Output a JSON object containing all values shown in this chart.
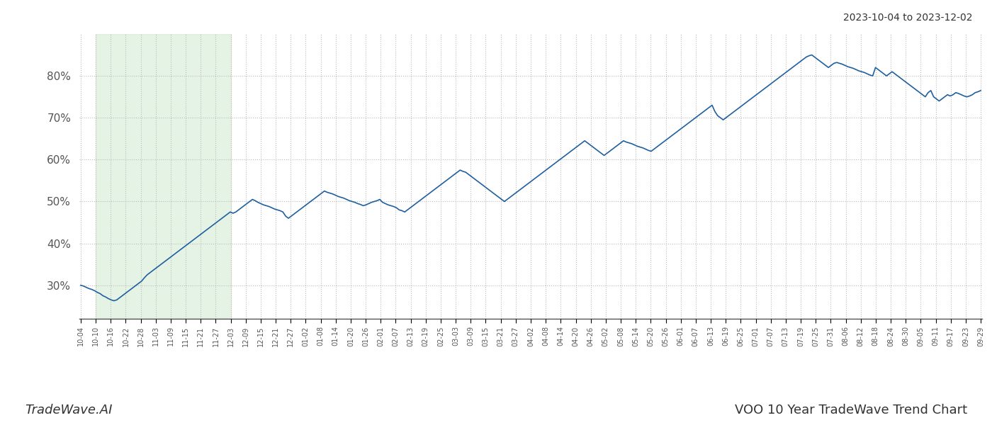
{
  "title_top_right": "2023-10-04 to 2023-12-02",
  "title_bottom_right": "VOO 10 Year TradeWave Trend Chart",
  "title_bottom_left": "TradeWave.AI",
  "line_color": "#2060a0",
  "line_width": 1.2,
  "shaded_region_color": "#cde8cd",
  "shaded_region_alpha": 0.5,
  "background_color": "#ffffff",
  "grid_color": "#bbbbbb",
  "grid_style": ":",
  "ylim": [
    22,
    90
  ],
  "yticks": [
    30,
    40,
    50,
    60,
    70,
    80
  ],
  "x_labels": [
    "10-04",
    "10-10",
    "10-16",
    "10-22",
    "10-28",
    "11-03",
    "11-09",
    "11-15",
    "11-21",
    "11-27",
    "12-03",
    "12-09",
    "12-15",
    "12-21",
    "12-27",
    "01-02",
    "01-08",
    "01-14",
    "01-20",
    "01-26",
    "02-01",
    "02-07",
    "02-13",
    "02-19",
    "02-25",
    "03-03",
    "03-09",
    "03-15",
    "03-21",
    "03-27",
    "04-02",
    "04-08",
    "04-14",
    "04-20",
    "04-26",
    "05-02",
    "05-08",
    "05-14",
    "05-20",
    "05-26",
    "06-01",
    "06-07",
    "06-13",
    "06-19",
    "06-25",
    "07-01",
    "07-07",
    "07-13",
    "07-19",
    "07-25",
    "07-31",
    "08-06",
    "08-12",
    "08-18",
    "08-24",
    "08-30",
    "09-05",
    "09-11",
    "09-17",
    "09-23",
    "09-29"
  ],
  "shaded_label_start": "10-10",
  "shaded_label_end": "12-03",
  "values": [
    30.0,
    29.8,
    29.5,
    29.2,
    29.0,
    28.7,
    28.3,
    28.0,
    27.5,
    27.2,
    26.8,
    26.5,
    26.3,
    26.5,
    27.0,
    27.5,
    28.0,
    28.5,
    29.0,
    29.5,
    30.0,
    30.5,
    31.0,
    31.8,
    32.5,
    33.0,
    33.5,
    34.0,
    34.5,
    35.0,
    35.5,
    36.0,
    36.5,
    37.0,
    37.5,
    38.0,
    38.5,
    39.0,
    39.5,
    40.0,
    40.5,
    41.0,
    41.5,
    42.0,
    42.5,
    43.0,
    43.5,
    44.0,
    44.5,
    45.0,
    45.5,
    46.0,
    46.5,
    47.0,
    47.5,
    47.2,
    47.5,
    48.0,
    48.5,
    49.0,
    49.5,
    50.0,
    50.5,
    50.2,
    49.8,
    49.5,
    49.2,
    49.0,
    48.8,
    48.5,
    48.2,
    48.0,
    47.8,
    47.5,
    46.5,
    46.0,
    46.5,
    47.0,
    47.5,
    48.0,
    48.5,
    49.0,
    49.5,
    50.0,
    50.5,
    51.0,
    51.5,
    52.0,
    52.5,
    52.2,
    52.0,
    51.8,
    51.5,
    51.2,
    51.0,
    50.8,
    50.5,
    50.2,
    50.0,
    49.8,
    49.5,
    49.3,
    49.0,
    49.2,
    49.5,
    49.8,
    50.0,
    50.2,
    50.5,
    49.8,
    49.5,
    49.2,
    49.0,
    48.8,
    48.5,
    48.0,
    47.8,
    47.5,
    48.0,
    48.5,
    49.0,
    49.5,
    50.0,
    50.5,
    51.0,
    51.5,
    52.0,
    52.5,
    53.0,
    53.5,
    54.0,
    54.5,
    55.0,
    55.5,
    56.0,
    56.5,
    57.0,
    57.5,
    57.2,
    57.0,
    56.5,
    56.0,
    55.5,
    55.0,
    54.5,
    54.0,
    53.5,
    53.0,
    52.5,
    52.0,
    51.5,
    51.0,
    50.5,
    50.0,
    50.5,
    51.0,
    51.5,
    52.0,
    52.5,
    53.0,
    53.5,
    54.0,
    54.5,
    55.0,
    55.5,
    56.0,
    56.5,
    57.0,
    57.5,
    58.0,
    58.5,
    59.0,
    59.5,
    60.0,
    60.5,
    61.0,
    61.5,
    62.0,
    62.5,
    63.0,
    63.5,
    64.0,
    64.5,
    64.0,
    63.5,
    63.0,
    62.5,
    62.0,
    61.5,
    61.0,
    61.5,
    62.0,
    62.5,
    63.0,
    63.5,
    64.0,
    64.5,
    64.2,
    64.0,
    63.8,
    63.5,
    63.2,
    63.0,
    62.8,
    62.5,
    62.2,
    62.0,
    62.5,
    63.0,
    63.5,
    64.0,
    64.5,
    65.0,
    65.5,
    66.0,
    66.5,
    67.0,
    67.5,
    68.0,
    68.5,
    69.0,
    69.5,
    70.0,
    70.5,
    71.0,
    71.5,
    72.0,
    72.5,
    73.0,
    71.5,
    70.5,
    70.0,
    69.5,
    70.0,
    70.5,
    71.0,
    71.5,
    72.0,
    72.5,
    73.0,
    73.5,
    74.0,
    74.5,
    75.0,
    75.5,
    76.0,
    76.5,
    77.0,
    77.5,
    78.0,
    78.5,
    79.0,
    79.5,
    80.0,
    80.5,
    81.0,
    81.5,
    82.0,
    82.5,
    83.0,
    83.5,
    84.0,
    84.5,
    84.8,
    85.0,
    84.5,
    84.0,
    83.5,
    83.0,
    82.5,
    82.0,
    82.5,
    83.0,
    83.2,
    83.0,
    82.8,
    82.5,
    82.2,
    82.0,
    81.8,
    81.5,
    81.2,
    81.0,
    80.8,
    80.5,
    80.2,
    80.0,
    82.0,
    81.5,
    81.0,
    80.5,
    80.0,
    80.5,
    81.0,
    80.5,
    80.0,
    79.5,
    79.0,
    78.5,
    78.0,
    77.5,
    77.0,
    76.5,
    76.0,
    75.5,
    75.0,
    76.0,
    76.5,
    75.0,
    74.5,
    74.0,
    74.5,
    75.0,
    75.5,
    75.2,
    75.5,
    76.0,
    75.8,
    75.5,
    75.2,
    75.0,
    75.2,
    75.5,
    76.0,
    76.2,
    76.5
  ]
}
